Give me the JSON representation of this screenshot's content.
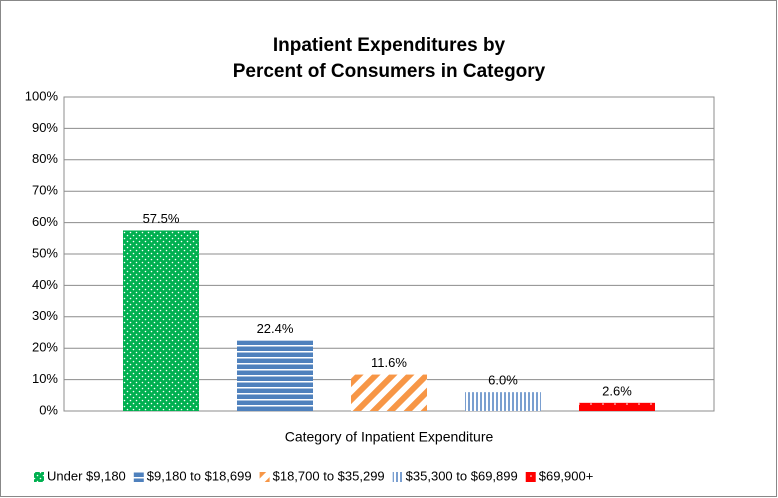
{
  "chart_data": {
    "type": "bar",
    "title": [
      "Inpatient Expenditures by",
      "Percent of Consumers in Category"
    ],
    "x_label": "Category of Inpatient Expenditure",
    "ylim": [
      0,
      100
    ],
    "yticks": [
      {
        "value": 0,
        "label": "0%"
      },
      {
        "value": 10,
        "label": "10%"
      },
      {
        "value": 20,
        "label": "20%"
      },
      {
        "value": 30,
        "label": "30%"
      },
      {
        "value": 40,
        "label": "40%"
      },
      {
        "value": 50,
        "label": "50%"
      },
      {
        "value": 60,
        "label": "60%"
      },
      {
        "value": 70,
        "label": "70%"
      },
      {
        "value": 80,
        "label": "80%"
      },
      {
        "value": 90,
        "label": "90%"
      },
      {
        "value": 100,
        "label": "100%"
      }
    ],
    "grid": true,
    "legend": "bottom",
    "series": [
      {
        "name": "Under $9,180",
        "color": "#00b050",
        "pattern": "dots",
        "values": [
          57.5
        ],
        "value_labels": [
          "57.5%"
        ]
      },
      {
        "name": "$9,180 to $18,699",
        "color": "#4f81bd",
        "pattern": "hlines",
        "values": [
          22.4
        ],
        "value_labels": [
          "22.4%"
        ]
      },
      {
        "name": "$18,700 to $35,299",
        "color": "#f79646",
        "pattern": "diagonal",
        "values": [
          11.6
        ],
        "value_labels": [
          "11.6%"
        ]
      },
      {
        "name": "$35,300 to $69,899",
        "color": "#7a9fd0",
        "pattern": "vlines",
        "values": [
          6.0
        ],
        "value_labels": [
          "6.0%"
        ]
      },
      {
        "name": "$69,900+",
        "color": "#ff0000",
        "pattern": "sparse-dots",
        "values": [
          2.6
        ],
        "value_labels": [
          "2.6%"
        ]
      }
    ]
  }
}
